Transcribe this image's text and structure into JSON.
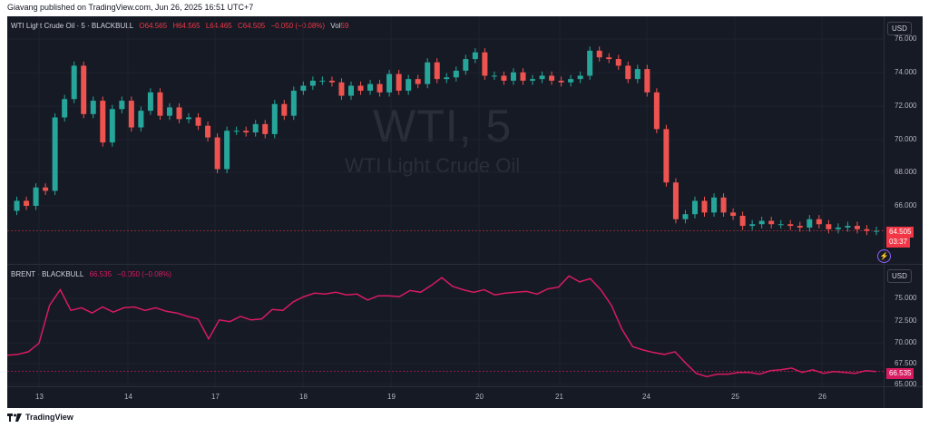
{
  "header": {
    "published": "Giavang published on TradingView.com, Jun 26, 2025 16:51 UTC+7"
  },
  "wti": {
    "title": "WTI Light Crude Oil · 5 · BLACKBULL",
    "o": "O64.565",
    "h": "H64.565",
    "l": "L64.465",
    "c": "C64.505",
    "change": "−0.050 (−0.08%)",
    "vol_label": "Vol",
    "vol": "59",
    "currency": "USD",
    "watermark_symbol": "WTI, 5",
    "watermark_name": "WTI Light Crude Oil",
    "last_price": "64.505",
    "countdown": "03:37",
    "y_ticks": [
      "76.000",
      "74.000",
      "72.000",
      "70.000",
      "68.000",
      "66.000"
    ],
    "colors": {
      "up": "#26a69a",
      "down": "#ef5350",
      "tag": "#f23645"
    }
  },
  "brent": {
    "title": "BRENT · BLACKBULL",
    "last": "66.535",
    "change": "−0.050 (−0.08%)",
    "currency": "USD",
    "y_ticks": [
      "75.000",
      "72.500",
      "70.000",
      "67.500",
      "65.000"
    ],
    "color": "#d81b60"
  },
  "x_axis": {
    "labels": [
      "13",
      "14",
      "17",
      "18",
      "19",
      "20",
      "21",
      "24",
      "25",
      "26"
    ]
  },
  "footer": {
    "brand": "TradingView"
  },
  "chart_data": [
    {
      "type": "line",
      "series": [
        {
          "name": "WTI Light Crude Oil · 5 · BLACKBULL",
          "values": [
            65.7,
            66.3,
            66.0,
            67.1,
            66.9,
            71.3,
            72.4,
            74.4,
            71.5,
            72.3,
            69.8,
            71.8,
            72.3,
            70.7,
            71.7,
            72.8,
            71.4,
            71.9,
            71.2,
            71.3,
            70.8,
            70.1,
            68.2,
            70.5,
            70.5,
            70.4,
            70.9,
            70.3,
            72.1,
            71.4,
            72.9,
            73.2,
            73.5,
            73.5,
            73.4,
            72.6,
            73.2,
            72.9,
            73.3,
            72.8,
            73.9,
            72.9,
            73.6,
            73.3,
            74.6,
            73.6,
            73.7,
            74.1,
            74.8,
            75.2,
            73.8,
            73.8,
            73.5,
            74.0,
            73.5,
            73.6,
            73.8,
            73.5,
            73.4,
            73.6,
            73.8,
            75.3,
            74.9,
            74.8,
            74.4,
            73.6,
            74.2,
            72.8,
            70.6,
            67.4,
            65.2,
            65.5,
            66.3,
            65.6,
            66.5,
            65.6,
            65.4,
            64.8,
            64.9,
            65.1,
            64.9,
            64.9,
            64.8,
            64.7,
            65.2,
            64.9,
            64.6,
            64.7,
            64.8,
            64.6,
            64.5,
            64.5
          ]
        }
      ],
      "ylim": [
        64.0,
        76.5
      ]
    },
    {
      "type": "line",
      "series": [
        {
          "name": "BRENT · BLACKBULL",
          "values": [
            68.4,
            68.5,
            68.8,
            69.8,
            74.2,
            76.0,
            73.6,
            73.9,
            73.3,
            74.0,
            73.4,
            73.9,
            74.0,
            73.6,
            73.9,
            73.5,
            73.3,
            72.9,
            72.6,
            70.3,
            72.5,
            72.3,
            72.9,
            72.5,
            72.6,
            73.7,
            73.6,
            74.6,
            75.2,
            75.6,
            75.5,
            75.7,
            75.4,
            75.5,
            74.8,
            75.3,
            75.3,
            75.2,
            75.9,
            75.7,
            76.5,
            77.4,
            76.4,
            76.0,
            75.7,
            76.0,
            75.4,
            75.6,
            75.7,
            75.8,
            75.5,
            76.1,
            76.3,
            77.6,
            76.9,
            77.3,
            76.0,
            74.2,
            71.4,
            69.4,
            69.0,
            68.7,
            68.5,
            68.8,
            67.5,
            66.3,
            65.9,
            66.2,
            66.2,
            66.4,
            66.4,
            66.2,
            66.6,
            66.7,
            66.9,
            66.4,
            66.7,
            66.3,
            66.5,
            66.4,
            66.3,
            66.6,
            66.5
          ]
        }
      ],
      "ylim": [
        65.0,
        78.5
      ]
    }
  ]
}
